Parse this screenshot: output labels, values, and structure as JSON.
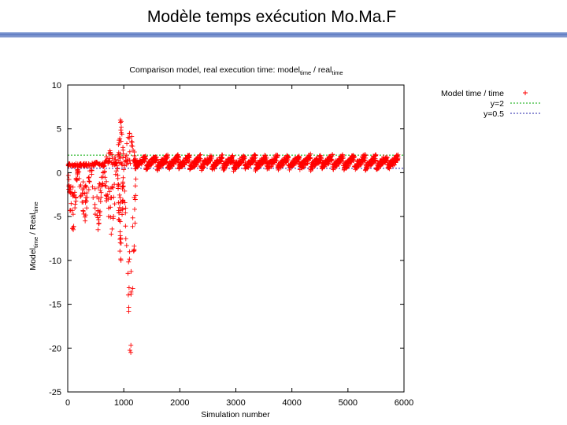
{
  "slide": {
    "title": "Modèle temps exécution Mo.Ma.F"
  },
  "chart_data": {
    "type": "scatter",
    "title": {
      "main": "Comparison model, real execution time: model",
      "sub1": "time",
      "mid": " / real",
      "sub2": "time"
    },
    "xlabel": "Simulation number",
    "ylabel": {
      "a": "Model",
      "a_sub": "time",
      "b": " / Real",
      "b_sub": "time"
    },
    "xlim": [
      0,
      6000
    ],
    "ylim": [
      -25,
      10
    ],
    "xticks": [
      0,
      1000,
      2000,
      3000,
      4000,
      5000,
      6000
    ],
    "yticks": [
      10,
      5,
      0,
      -5,
      -10,
      -15,
      -20,
      -25
    ],
    "grid": false,
    "legend_position": "top-right-outside",
    "series": [
      {
        "name": "Model time / time",
        "kind": "points",
        "color": "#ff0000",
        "marker": "+"
      },
      {
        "name": "y=2",
        "kind": "hline",
        "y": 2,
        "color": "#00aa00",
        "dash": "2,2"
      },
      {
        "name": "y=0.5",
        "kind": "hline",
        "y": 0.5,
        "color": "#2222aa",
        "dash": "2,2"
      }
    ],
    "band": {
      "x_range": [
        1200,
        5900
      ],
      "low": 0.6,
      "high": 1.8,
      "cycles": 24
    },
    "early_segments": [
      {
        "x_start": 0,
        "x_end": 180,
        "top": 0.9,
        "bottom": -6.5
      },
      {
        "x_start": 190,
        "x_end": 410,
        "top": 0.9,
        "bottom": -5.5
      },
      {
        "x_start": 420,
        "x_end": 640,
        "top": 1.2,
        "bottom": -6.5
      },
      {
        "x_start": 650,
        "x_end": 880,
        "top": 2.5,
        "bottom": -7.0
      },
      {
        "x_start": 890,
        "x_end": 1000,
        "top": 6.0,
        "bottom": -10.0
      },
      {
        "x_start": 1010,
        "x_end": 1220,
        "top": 4.5,
        "bottom": -20.5
      }
    ]
  }
}
